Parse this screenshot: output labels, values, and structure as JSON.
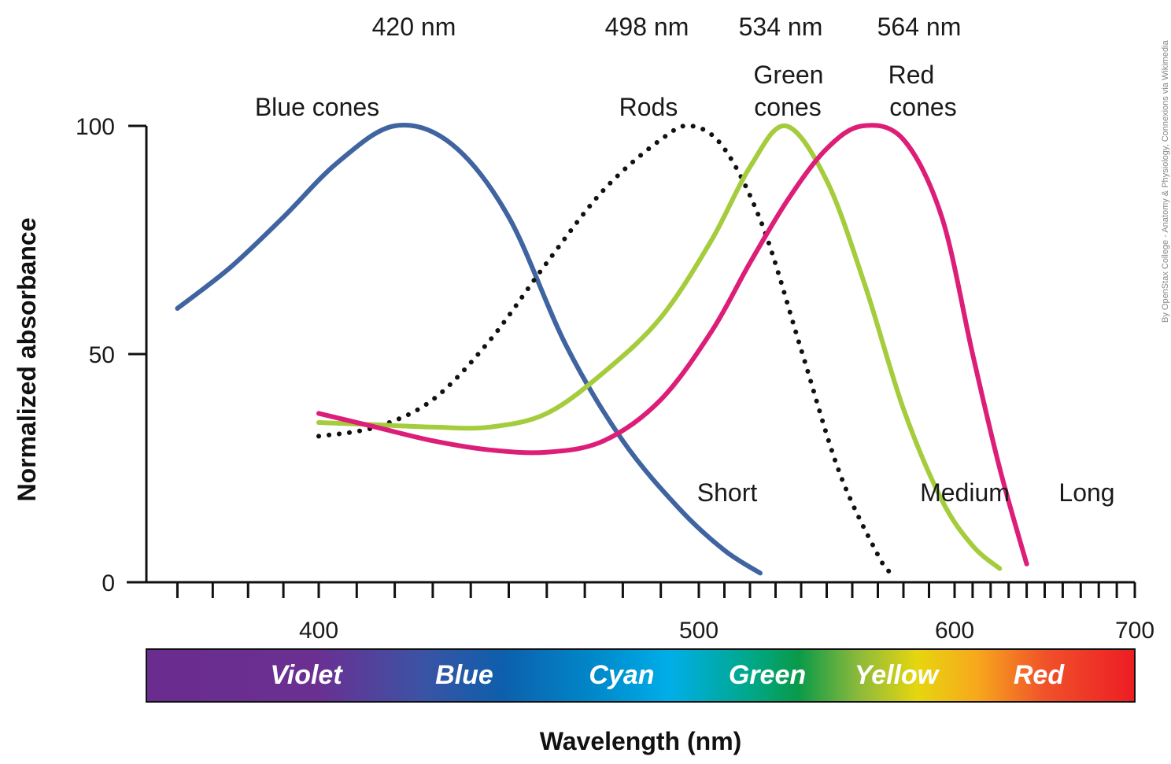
{
  "chart_data": {
    "type": "line",
    "title": "",
    "xlabel": "Wavelength (nm)",
    "ylabel": "Normalized absorbance",
    "xlim": [
      355,
      700
    ],
    "ylim": [
      0,
      100
    ],
    "x_ticks": [
      400,
      500,
      600,
      700
    ],
    "y_ticks": [
      0,
      50,
      100
    ],
    "grid": false,
    "series": [
      {
        "name": "Blue cones",
        "short_label": "Short",
        "peak_label": "420 nm",
        "color": "#3f64a0",
        "style": "solid",
        "x": [
          360,
          375,
          390,
          405,
          420,
          435,
          450,
          465,
          480,
          495,
          510,
          524
        ],
        "y": [
          60,
          69,
          80,
          92,
          100,
          96,
          80,
          52,
          31,
          16,
          7,
          2
        ]
      },
      {
        "name": "Rods",
        "peak_label": "498 nm",
        "color": "#111111",
        "style": "dotted",
        "x": [
          400,
          415,
          430,
          445,
          460,
          475,
          490,
          498,
          510,
          525,
          540,
          555,
          570,
          575
        ],
        "y": [
          32,
          34,
          40,
          53,
          70,
          86,
          97,
          100,
          95,
          78,
          51,
          24,
          6,
          2
        ]
      },
      {
        "name": "Green cones",
        "short_label": "Medium",
        "peak_label": "534 nm",
        "color": "#a4cc3c",
        "style": "solid",
        "x": [
          400,
          415,
          430,
          445,
          460,
          475,
          490,
          505,
          520,
          534,
          550,
          565,
          580,
          595,
          610,
          625
        ],
        "y": [
          35,
          34.5,
          34,
          34,
          37,
          46,
          58,
          75,
          91,
          100,
          88,
          65,
          38,
          18,
          8,
          3
        ]
      },
      {
        "name": "Red cones",
        "short_label": "Long",
        "peak_label": "564 nm",
        "color": "#dc1e78",
        "style": "solid",
        "x": [
          400,
          415,
          430,
          445,
          460,
          475,
          490,
          505,
          520,
          535,
          550,
          564,
          580,
          595,
          610,
          625,
          640
        ],
        "y": [
          37,
          34,
          31,
          29,
          28.5,
          31,
          40,
          55,
          70,
          84,
          95,
          100,
          97,
          80,
          50,
          25,
          4
        ]
      }
    ],
    "spectrum_labels": [
      "Violet",
      "Blue",
      "Cyan",
      "Green",
      "Yellow",
      "Red"
    ]
  },
  "peak_labels": [
    "420 nm",
    "498 nm",
    "534 nm",
    "564 nm"
  ],
  "curve_labels": {
    "blue_cones": "Blue cones",
    "rods": "Rods",
    "green_cones_line1": "Green",
    "green_cones_line2": "cones",
    "red_cones_line1": "Red",
    "red_cones_line2": "cones"
  },
  "credit": "By OpenStax College - Anatomy & Physiology, Connexions via Wikimedia"
}
